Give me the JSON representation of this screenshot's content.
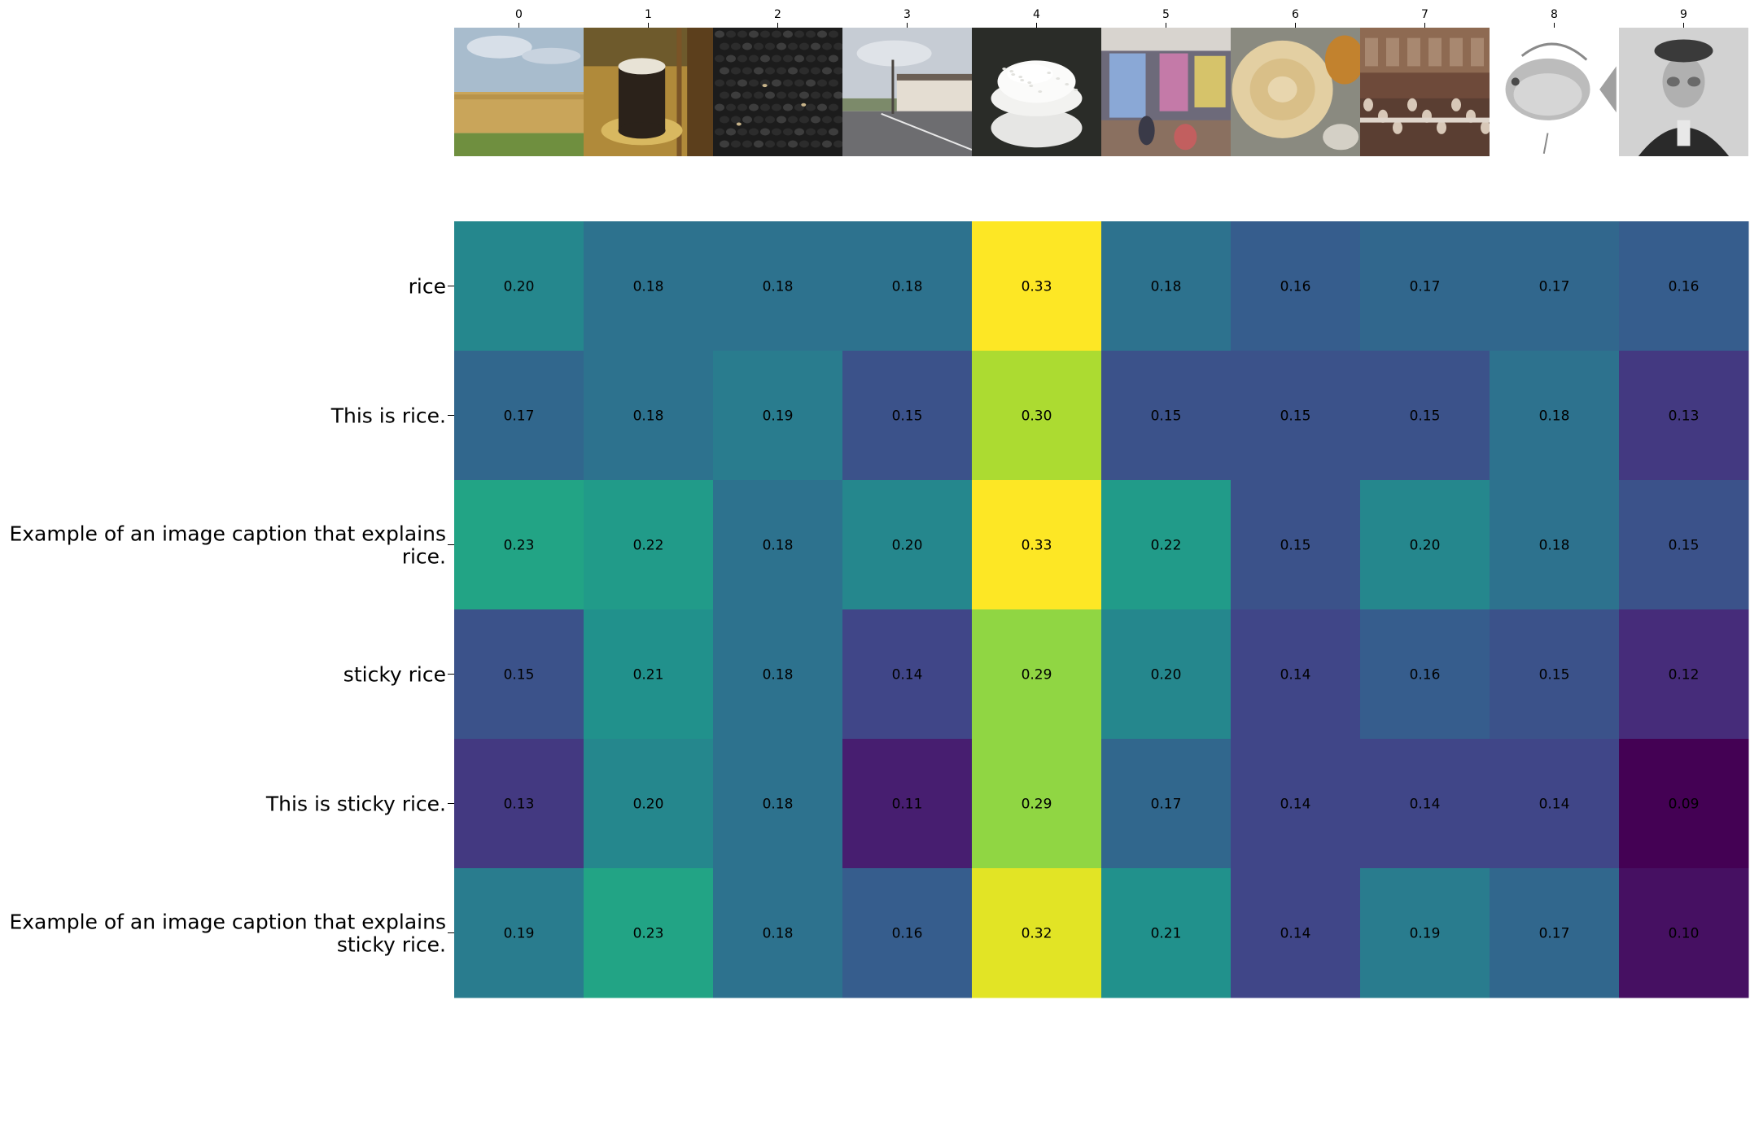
{
  "chart_data": {
    "type": "heatmap",
    "title": "",
    "xlabel": "",
    "ylabel": "",
    "x_tick_labels": [
      "0",
      "1",
      "2",
      "3",
      "4",
      "5",
      "6",
      "7",
      "8",
      "9"
    ],
    "y_tick_labels": [
      [
        "rice"
      ],
      [
        "This is rice."
      ],
      [
        "Example of an image caption that explains",
        "rice."
      ],
      [
        "sticky rice"
      ],
      [
        "This is sticky rice."
      ],
      [
        "Example of an image caption that explains",
        "sticky rice."
      ]
    ],
    "value_format": "2dp",
    "colormap": "viridis",
    "color_range": [
      0.09,
      0.33
    ],
    "values": [
      [
        0.2,
        0.18,
        0.18,
        0.18,
        0.33,
        0.18,
        0.16,
        0.17,
        0.17,
        0.16
      ],
      [
        0.17,
        0.18,
        0.19,
        0.15,
        0.3,
        0.15,
        0.15,
        0.15,
        0.18,
        0.13
      ],
      [
        0.23,
        0.22,
        0.18,
        0.2,
        0.33,
        0.22,
        0.15,
        0.2,
        0.18,
        0.15
      ],
      [
        0.15,
        0.21,
        0.18,
        0.14,
        0.29,
        0.2,
        0.14,
        0.16,
        0.15,
        0.12
      ],
      [
        0.13,
        0.2,
        0.18,
        0.11,
        0.29,
        0.17,
        0.14,
        0.14,
        0.14,
        0.09
      ],
      [
        0.19,
        0.23,
        0.18,
        0.16,
        0.32,
        0.21,
        0.14,
        0.19,
        0.17,
        0.1
      ]
    ],
    "image_thumbnails": [
      "wheat-field",
      "cup-of-drink",
      "black-beans",
      "street",
      "bowl-of-rice",
      "market-stall",
      "flatbread-curry",
      "dining-hall",
      "fish-drawing",
      "man-portrait"
    ]
  }
}
